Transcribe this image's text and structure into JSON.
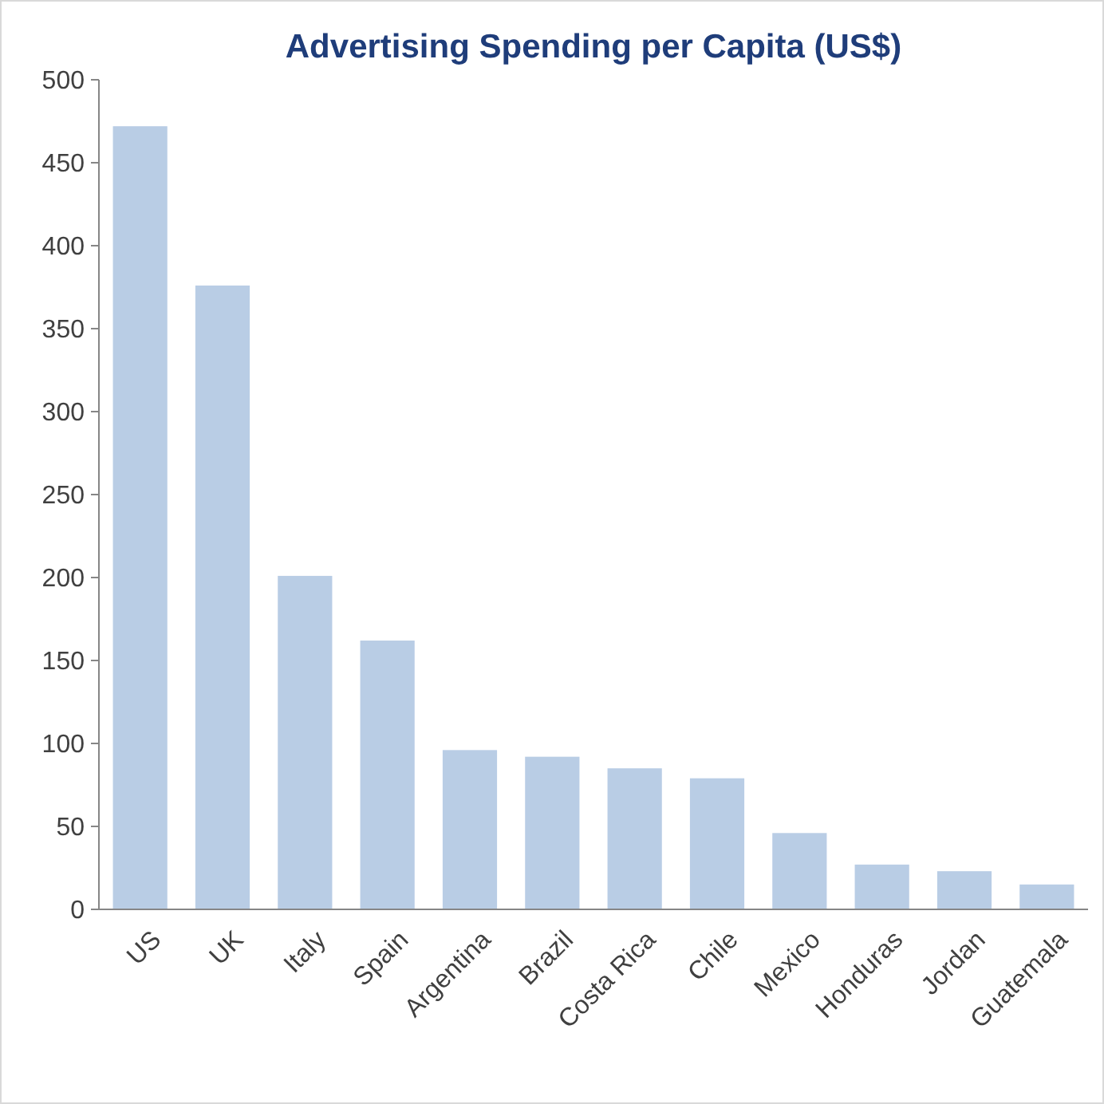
{
  "chart_data": {
    "type": "bar",
    "title": "Advertising Spending per Capita (US$)",
    "categories": [
      "US",
      "UK",
      "Italy",
      "Spain",
      "Argentina",
      "Brazil",
      "Costa Rica",
      "Chile",
      "Mexico",
      "Honduras",
      "Jordan",
      "Guatemala"
    ],
    "values": [
      472,
      376,
      201,
      162,
      96,
      92,
      85,
      79,
      46,
      27,
      23,
      15
    ],
    "color": "#b9cde5",
    "ylim": [
      0,
      500
    ],
    "yticks": [
      0,
      50,
      100,
      150,
      200,
      250,
      300,
      350,
      400,
      450,
      500
    ],
    "grid": false
  }
}
